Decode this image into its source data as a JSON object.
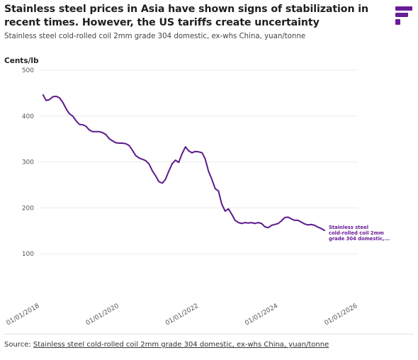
{
  "header": {
    "title": "Stainless steel prices in Asia have shown signs of stabilization in recent times. However, the US tariffs create uncertainty",
    "subtitle": "Stainless steel cold-rolled coil 2mm grade 304 domestic, ex-whs China, yuan/tonne",
    "logo_icon": "brand-logo-icon"
  },
  "footer": {
    "source_prefix": "Source:",
    "source_link": "Stainless steel cold-rolled coil 2mm grade 304 domestic, ex-whs China, yuan/tonne"
  },
  "colors": {
    "line": "#5c1a8c",
    "label": "#6a1b9a",
    "grid": "#ececec",
    "axis_text": "#555555"
  },
  "chart_data": {
    "type": "line",
    "title": "Stainless steel prices in Asia have shown signs of stabilization in recent times. However, the US tariffs create uncertainty",
    "ylabel": "Cents/lb",
    "xlabel": "",
    "ylim": [
      0,
      500
    ],
    "yticks": [
      100,
      200,
      300,
      400,
      500
    ],
    "xlim": [
      "2018-01-01",
      "2026-01-01"
    ],
    "xticks": [
      "2018-01-01",
      "2020-01-01",
      "2022-01-01",
      "2024-01-01",
      "2026-01-01"
    ],
    "xtick_labels": [
      "01/01/2018",
      "01/01/2020",
      "01/01/2022",
      "01/01/2024",
      "01/01/2026"
    ],
    "grid": "horizontal",
    "series": [
      {
        "name": "Stainless steel cold-rolled coil 2mm grade 304 domestic,...",
        "label_lines": [
          "Stainless steel",
          "cold-rolled coil 2mm",
          "grade 304 domestic,..."
        ],
        "points": [
          [
            "2018-02-01",
            446
          ],
          [
            "2018-03-01",
            434
          ],
          [
            "2018-04-01",
            436
          ],
          [
            "2018-05-01",
            442
          ],
          [
            "2018-06-01",
            443
          ],
          [
            "2018-07-01",
            440
          ],
          [
            "2018-08-01",
            430
          ],
          [
            "2018-09-01",
            416
          ],
          [
            "2018-10-01",
            405
          ],
          [
            "2018-11-01",
            400
          ],
          [
            "2018-12-01",
            390
          ],
          [
            "2019-01-01",
            382
          ],
          [
            "2019-02-01",
            381
          ],
          [
            "2019-03-01",
            378
          ],
          [
            "2019-04-01",
            370
          ],
          [
            "2019-05-01",
            366
          ],
          [
            "2019-06-01",
            366
          ],
          [
            "2019-07-01",
            366
          ],
          [
            "2019-08-01",
            364
          ],
          [
            "2019-09-01",
            360
          ],
          [
            "2019-10-01",
            351
          ],
          [
            "2019-11-01",
            346
          ],
          [
            "2019-12-01",
            342
          ],
          [
            "2020-01-01",
            341
          ],
          [
            "2020-02-01",
            341
          ],
          [
            "2020-03-01",
            340
          ],
          [
            "2020-04-01",
            336
          ],
          [
            "2020-05-01",
            326
          ],
          [
            "2020-06-01",
            314
          ],
          [
            "2020-07-01",
            309
          ],
          [
            "2020-08-01",
            306
          ],
          [
            "2020-09-01",
            303
          ],
          [
            "2020-10-01",
            296
          ],
          [
            "2020-11-01",
            281
          ],
          [
            "2020-12-01",
            270
          ],
          [
            "2021-01-01",
            257
          ],
          [
            "2021-02-01",
            254
          ],
          [
            "2021-03-01",
            262
          ],
          [
            "2021-04-01",
            280
          ],
          [
            "2021-05-01",
            296
          ],
          [
            "2021-06-01",
            304
          ],
          [
            "2021-07-01",
            299
          ],
          [
            "2021-08-01",
            318
          ],
          [
            "2021-09-01",
            333
          ],
          [
            "2021-10-01",
            324
          ],
          [
            "2021-11-01",
            320
          ],
          [
            "2021-12-01",
            323
          ],
          [
            "2022-01-01",
            322
          ],
          [
            "2022-02-01",
            320
          ],
          [
            "2022-03-01",
            307
          ],
          [
            "2022-04-01",
            280
          ],
          [
            "2022-05-01",
            263
          ],
          [
            "2022-06-01",
            242
          ],
          [
            "2022-07-01",
            237
          ],
          [
            "2022-08-01",
            208
          ],
          [
            "2022-09-01",
            193
          ],
          [
            "2022-10-01",
            198
          ],
          [
            "2022-11-01",
            186
          ],
          [
            "2022-12-01",
            173
          ],
          [
            "2023-01-01",
            168
          ],
          [
            "2023-02-01",
            166
          ],
          [
            "2023-03-01",
            168
          ],
          [
            "2023-04-01",
            167
          ],
          [
            "2023-05-01",
            168
          ],
          [
            "2023-06-01",
            166
          ],
          [
            "2023-07-01",
            168
          ],
          [
            "2023-08-01",
            166
          ],
          [
            "2023-09-01",
            159
          ],
          [
            "2023-10-01",
            157
          ],
          [
            "2023-11-01",
            162
          ],
          [
            "2023-12-01",
            164
          ],
          [
            "2024-01-01",
            166
          ],
          [
            "2024-02-01",
            172
          ],
          [
            "2024-03-01",
            179
          ],
          [
            "2024-04-01",
            180
          ],
          [
            "2024-05-01",
            176
          ],
          [
            "2024-06-01",
            173
          ],
          [
            "2024-07-01",
            173
          ],
          [
            "2024-08-01",
            169
          ],
          [
            "2024-09-01",
            165
          ],
          [
            "2024-10-01",
            163
          ],
          [
            "2024-11-01",
            164
          ],
          [
            "2024-12-01",
            162
          ],
          [
            "2025-01-01",
            158
          ],
          [
            "2025-02-01",
            155
          ],
          [
            "2025-03-01",
            151
          ]
        ]
      }
    ]
  }
}
